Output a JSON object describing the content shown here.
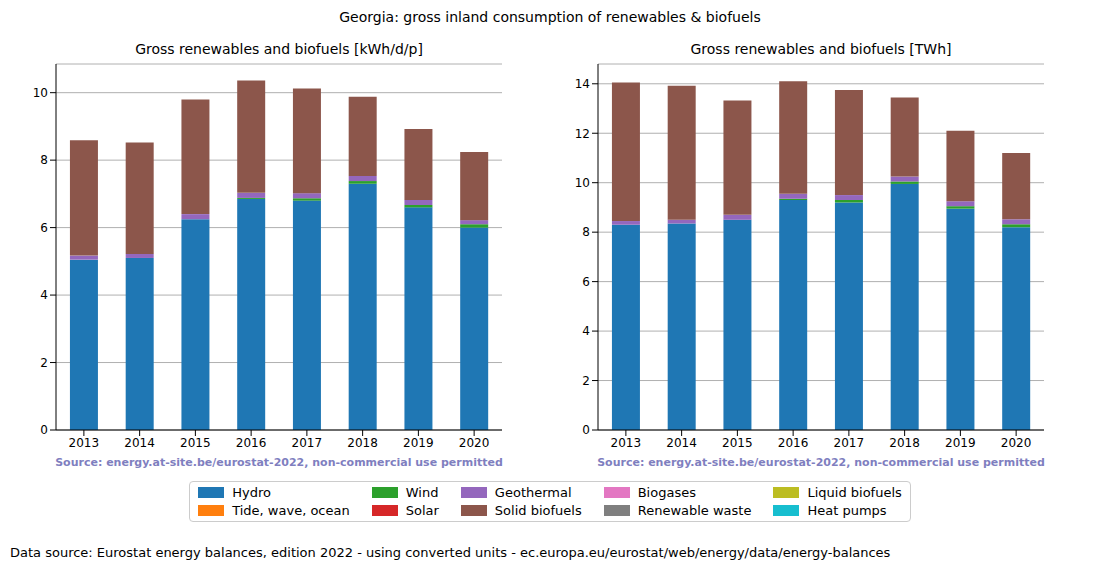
{
  "title": "Georgia: gross inland consumption of renewables & biofuels",
  "footer": "Data source: Eurostat energy balances, edition 2022 - using converted units - ec.europa.eu/eurostat/web/energy/data/energy-balances",
  "legend": "bottom",
  "chart_data": [
    {
      "type": "bar",
      "title": "Gross renewables and biofuels [kWh/d/p]",
      "annotation": "Source: energy.at-site.be/eurostat-2022, non-commercial use permitted",
      "categories": [
        "2013",
        "2014",
        "2015",
        "2016",
        "2017",
        "2018",
        "2019",
        "2020"
      ],
      "stacked": true,
      "grid": true,
      "ylim": [
        0,
        10.85
      ],
      "yticks": [
        0,
        2,
        4,
        6,
        8,
        10
      ],
      "series": [
        {
          "name": "Hydro",
          "color": "#1f77b4",
          "values": [
            5.05,
            5.1,
            6.25,
            6.85,
            6.8,
            7.3,
            6.6,
            6.0
          ]
        },
        {
          "name": "Tide, wave, ocean",
          "color": "#ff7f0e",
          "values": [
            0,
            0,
            0,
            0,
            0,
            0,
            0,
            0
          ]
        },
        {
          "name": "Wind",
          "color": "#2ca02c",
          "values": [
            0,
            0,
            0,
            0.03,
            0.07,
            0.08,
            0.07,
            0.1
          ]
        },
        {
          "name": "Solar",
          "color": "#d62728",
          "values": [
            0,
            0,
            0,
            0,
            0,
            0,
            0,
            0
          ]
        },
        {
          "name": "Geothermal",
          "color": "#9467bd",
          "values": [
            0.12,
            0.12,
            0.15,
            0.15,
            0.15,
            0.15,
            0.15,
            0.12
          ]
        },
        {
          "name": "Solid biofuels",
          "color": "#8c564b",
          "values": [
            3.42,
            3.3,
            3.4,
            3.33,
            3.1,
            2.35,
            2.1,
            2.02
          ]
        },
        {
          "name": "Biogases",
          "color": "#e377c2",
          "values": [
            0,
            0,
            0,
            0,
            0,
            0,
            0,
            0
          ]
        },
        {
          "name": "Renewable waste",
          "color": "#7f7f7f",
          "values": [
            0,
            0,
            0,
            0,
            0,
            0,
            0,
            0
          ]
        },
        {
          "name": "Liquid biofuels",
          "color": "#bcbd22",
          "values": [
            0,
            0,
            0,
            0,
            0,
            0,
            0,
            0
          ]
        },
        {
          "name": "Heat pumps",
          "color": "#17becf",
          "values": [
            0,
            0,
            0,
            0,
            0,
            0,
            0,
            0
          ]
        }
      ]
    },
    {
      "type": "bar",
      "title": "Gross renewables and biofuels [TWh]",
      "annotation": "Source: energy.at-site.be/eurostat-2022, non-commercial use permitted",
      "categories": [
        "2013",
        "2014",
        "2015",
        "2016",
        "2017",
        "2018",
        "2019",
        "2020"
      ],
      "stacked": true,
      "grid": true,
      "ylim": [
        0,
        14.8
      ],
      "yticks": [
        0,
        2,
        4,
        6,
        8,
        10,
        12,
        14
      ],
      "series": [
        {
          "name": "Hydro",
          "color": "#1f77b4",
          "values": [
            8.3,
            8.35,
            8.5,
            9.3,
            9.2,
            9.95,
            8.95,
            8.2
          ]
        },
        {
          "name": "Tide, wave, ocean",
          "color": "#ff7f0e",
          "values": [
            0,
            0,
            0,
            0,
            0,
            0,
            0,
            0
          ]
        },
        {
          "name": "Wind",
          "color": "#2ca02c",
          "values": [
            0,
            0,
            0,
            0.05,
            0.1,
            0.1,
            0.1,
            0.12
          ]
        },
        {
          "name": "Solar",
          "color": "#d62728",
          "values": [
            0,
            0,
            0,
            0,
            0,
            0,
            0,
            0
          ]
        },
        {
          "name": "Geothermal",
          "color": "#9467bd",
          "values": [
            0.15,
            0.15,
            0.2,
            0.2,
            0.2,
            0.2,
            0.2,
            0.2
          ]
        },
        {
          "name": "Solid biofuels",
          "color": "#8c564b",
          "values": [
            5.6,
            5.42,
            4.62,
            4.55,
            4.25,
            3.2,
            2.85,
            2.68
          ]
        },
        {
          "name": "Biogases",
          "color": "#e377c2",
          "values": [
            0,
            0,
            0,
            0,
            0,
            0,
            0,
            0
          ]
        },
        {
          "name": "Renewable waste",
          "color": "#7f7f7f",
          "values": [
            0,
            0,
            0,
            0,
            0,
            0,
            0,
            0
          ]
        },
        {
          "name": "Liquid biofuels",
          "color": "#bcbd22",
          "values": [
            0,
            0,
            0,
            0,
            0,
            0,
            0,
            0
          ]
        },
        {
          "name": "Heat pumps",
          "color": "#17becf",
          "values": [
            0,
            0,
            0,
            0,
            0,
            0,
            0,
            0
          ]
        }
      ]
    }
  ]
}
